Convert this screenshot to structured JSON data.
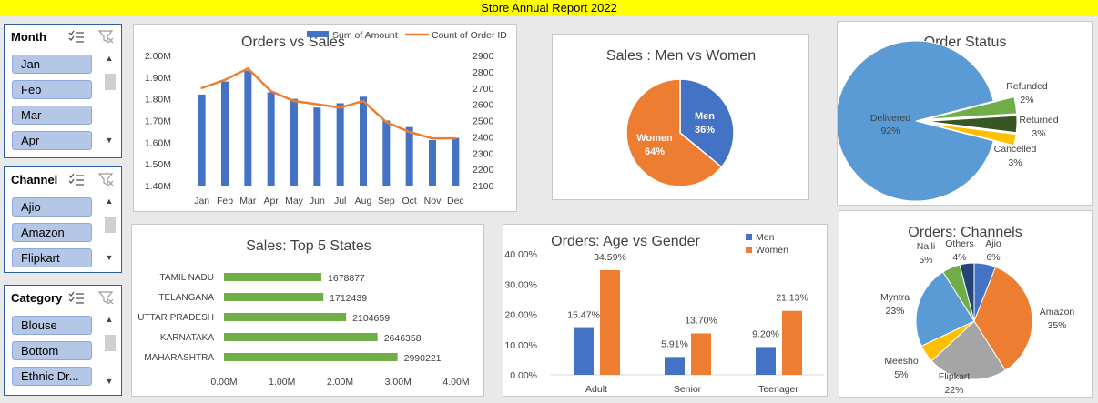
{
  "report_title": "Store Annual Report 2022",
  "slicers": [
    {
      "title": "Month",
      "items": [
        "Jan",
        "Feb",
        "Mar",
        "Apr"
      ]
    },
    {
      "title": "Channel",
      "items": [
        "Ajio",
        "Amazon",
        "Flipkart"
      ]
    },
    {
      "title": "Category",
      "items": [
        "Blouse",
        "Bottom",
        "Ethnic Dr..."
      ]
    }
  ],
  "colors": {
    "blue": "#4472c4",
    "orange": "#ed7d31",
    "green": "#70ad47",
    "lightblue": "#5b9bd5",
    "gold": "#ffc000",
    "darkgreen": "#375623",
    "gray": "#a5a5a5",
    "navy": "#264478"
  },
  "chart_data": [
    {
      "type": "bar",
      "title": "Orders vs Sales",
      "categories": [
        "Jan",
        "Feb",
        "Mar",
        "Apr",
        "May",
        "Jun",
        "Jul",
        "Aug",
        "Sep",
        "Oct",
        "Nov",
        "Dec"
      ],
      "series": [
        {
          "name": "Sum of Amount",
          "type": "bar",
          "axis": "left",
          "values": [
            1.82,
            1.88,
            1.93,
            1.83,
            1.8,
            1.76,
            1.78,
            1.81,
            1.7,
            1.67,
            1.61,
            1.62
          ]
        },
        {
          "name": "Count of Order ID",
          "type": "line",
          "axis": "right",
          "values": [
            2700,
            2750,
            2820,
            2680,
            2620,
            2600,
            2580,
            2620,
            2490,
            2430,
            2390,
            2390
          ]
        }
      ],
      "ylim_left": [
        1.4,
        2.0
      ],
      "y_ticks_left": [
        "1.40M",
        "1.50M",
        "1.60M",
        "1.70M",
        "1.80M",
        "1.90M",
        "2.00M"
      ],
      "ylim_right": [
        2100,
        2900
      ],
      "y_ticks_right": [
        "2100",
        "2200",
        "2300",
        "2400",
        "2500",
        "2600",
        "2700",
        "2800",
        "2900"
      ],
      "legend": "top"
    },
    {
      "type": "pie",
      "title": "Sales : Men vs Women",
      "labels": [
        "Men",
        "Women"
      ],
      "values": [
        36,
        64
      ],
      "value_labels": [
        "36%",
        "64%"
      ]
    },
    {
      "type": "pie",
      "title": "Order Status",
      "labels": [
        "Delivered",
        "Refunded",
        "Returned",
        "Cancelled"
      ],
      "values": [
        92,
        2,
        3,
        3
      ],
      "value_labels": [
        "92%",
        "2%",
        "3%",
        "3%"
      ]
    },
    {
      "type": "bar",
      "orientation": "horizontal",
      "title": "Sales: Top 5 States",
      "categories": [
        "TAMIL NADU",
        "TELANGANA",
        "UTTAR PRADESH",
        "KARNATAKA",
        "MAHARASHTRA"
      ],
      "values": [
        1678877,
        1712439,
        2104659,
        2646358,
        2990221
      ],
      "value_labels": [
        "1678877",
        "1712439",
        "2104659",
        "2646358",
        "2990221"
      ],
      "xlim": [
        0,
        4000000
      ],
      "x_ticks": [
        "0.00M",
        "1.00M",
        "2.00M",
        "3.00M",
        "4.00M"
      ]
    },
    {
      "type": "bar",
      "title": "Orders: Age vs Gender",
      "categories": [
        "Adult",
        "Senior",
        "Teenager"
      ],
      "series": [
        {
          "name": "Men",
          "values": [
            15.47,
            5.91,
            9.2
          ],
          "labels": [
            "15.47%",
            "5.91%",
            "9.20%"
          ]
        },
        {
          "name": "Women",
          "values": [
            34.59,
            13.7,
            21.13
          ],
          "labels": [
            "34.59%",
            "13.70%",
            "21.13%"
          ]
        }
      ],
      "ylim": [
        0,
        40
      ],
      "y_ticks": [
        "0.00%",
        "10.00%",
        "20.00%",
        "30.00%",
        "40.00%"
      ],
      "legend": "top-right"
    },
    {
      "type": "pie",
      "title": "Orders: Channels",
      "labels": [
        "Ajio",
        "Amazon",
        "Flipkart",
        "Meesho",
        "Myntra",
        "Nalli",
        "Others"
      ],
      "values": [
        6,
        35,
        22,
        5,
        23,
        5,
        4
      ],
      "value_labels": [
        "6%",
        "35%",
        "22%",
        "5%",
        "23%",
        "5%",
        "4%"
      ]
    }
  ]
}
